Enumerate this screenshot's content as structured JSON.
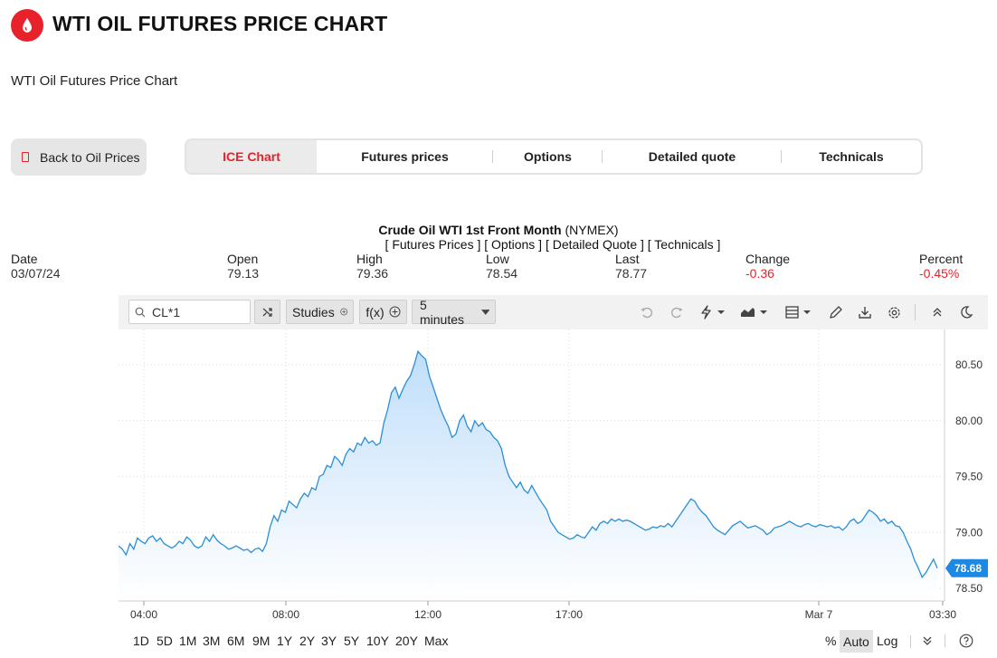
{
  "header": {
    "title": "WTI OIL FUTURES PRICE CHART",
    "subtitle": "WTI Oil Futures Price Chart"
  },
  "back_button": {
    "label": "Back to Oil Prices"
  },
  "tabs": [
    {
      "label": "ICE Chart",
      "active": true
    },
    {
      "label": "Futures prices",
      "active": false
    },
    {
      "label": "Options",
      "active": false
    },
    {
      "label": "Detailed quote",
      "active": false
    },
    {
      "label": "Technicals",
      "active": false
    }
  ],
  "instrument": {
    "name": "Crude Oil WTI 1st Front Month",
    "exchange": "(NYMEX)",
    "links": "[ Futures Prices ] [ Options ] [ Detailed Quote ] [ Technicals ]"
  },
  "quote": {
    "date_label": "Date",
    "date": "03/07/24",
    "open_label": "Open",
    "open": "79.13",
    "high_label": "High",
    "high": "79.36",
    "low_label": "Low",
    "low": "78.54",
    "last_label": "Last",
    "last": "78.77",
    "change_label": "Change",
    "change": "-0.36",
    "percent_label": "Percent",
    "percent": "-0.45%"
  },
  "toolbar": {
    "symbol": "CL*1",
    "studies_label": "Studies",
    "fx_label": "f(x)",
    "interval_label": "5 minutes"
  },
  "ranges": [
    "1D",
    "5D",
    "1M",
    "3M",
    "6M",
    "9M",
    "1Y",
    "2Y",
    "3Y",
    "5Y",
    "10Y",
    "20Y",
    "Max"
  ],
  "scale_options": {
    "percent": "%",
    "auto": "Auto",
    "log": "Log"
  },
  "colors": {
    "accent": "#e8222b",
    "line": "#2b8fd6",
    "fill": "#cfe5fb",
    "last_badge": "#1e88e5"
  },
  "chart_data": {
    "type": "area",
    "x_ticks": [
      "04:00",
      "08:00",
      "12:00",
      "17:00",
      "Mar 7",
      "03:30"
    ],
    "y_ticks": [
      "80.50",
      "80.00",
      "79.50",
      "79.00",
      "78.50"
    ],
    "ylim": [
      78.4,
      80.8
    ],
    "last_value": "78.68",
    "series": [
      {
        "values": [
          78.88,
          78.85,
          78.8,
          78.9,
          78.85,
          78.95,
          78.92,
          78.9,
          78.95,
          78.97,
          78.92,
          78.95,
          78.9,
          78.88,
          78.86,
          78.88,
          78.92,
          78.9,
          78.96,
          78.93,
          78.88,
          78.86,
          78.88,
          78.96,
          78.92,
          78.98,
          78.93,
          78.9,
          78.88,
          78.85,
          78.86,
          78.88,
          78.86,
          78.84,
          78.85,
          78.82,
          78.85,
          78.86,
          78.83,
          78.9,
          79.05,
          79.15,
          79.1,
          79.2,
          79.18,
          79.28,
          79.25,
          79.22,
          79.3,
          79.35,
          79.32,
          79.4,
          79.38,
          79.5,
          79.52,
          79.6,
          79.58,
          79.68,
          79.65,
          79.6,
          79.7,
          79.75,
          79.72,
          79.8,
          79.78,
          79.85,
          79.8,
          79.82,
          79.78,
          79.8,
          79.98,
          80.1,
          80.25,
          80.3,
          80.2,
          80.28,
          80.35,
          80.4,
          80.5,
          80.62,
          80.58,
          80.55,
          80.4,
          80.3,
          80.2,
          80.1,
          80.02,
          79.95,
          79.85,
          79.88,
          80.0,
          80.05,
          79.95,
          79.9,
          80.0,
          79.95,
          79.98,
          79.92,
          79.9,
          79.85,
          79.82,
          79.75,
          79.6,
          79.5,
          79.45,
          79.4,
          79.45,
          79.38,
          79.35,
          79.42,
          79.36,
          79.3,
          79.25,
          79.2,
          79.1,
          79.05,
          79.0,
          78.98,
          78.96,
          78.94,
          78.95,
          78.98,
          78.96,
          78.95,
          79.0,
          79.05,
          79.02,
          79.08,
          79.1,
          79.08,
          79.12,
          79.1,
          79.12,
          79.1,
          79.11,
          79.1,
          79.08,
          79.06,
          79.04,
          79.02,
          79.03,
          79.05,
          79.04,
          79.06,
          79.05,
          79.08,
          79.05,
          79.1,
          79.15,
          79.2,
          79.25,
          79.3,
          79.28,
          79.22,
          79.18,
          79.15,
          79.1,
          79.05,
          79.02,
          79.0,
          78.98,
          79.02,
          79.06,
          79.08,
          79.1,
          79.07,
          79.04,
          79.05,
          79.06,
          79.04,
          79.02,
          78.98,
          79.0,
          79.04,
          79.05,
          79.06,
          79.08,
          79.1,
          79.08,
          79.06,
          79.05,
          79.07,
          79.08,
          79.06,
          79.05,
          79.07,
          79.06,
          79.05,
          79.06,
          79.04,
          79.05,
          79.02,
          79.05,
          79.1,
          79.12,
          79.08,
          79.1,
          79.15,
          79.2,
          79.18,
          79.15,
          79.1,
          79.12,
          79.08,
          79.1,
          79.06,
          79.05,
          79.0,
          78.92,
          78.85,
          78.75,
          78.68,
          78.6,
          78.64,
          78.7,
          78.76,
          78.68
        ]
      }
    ]
  }
}
